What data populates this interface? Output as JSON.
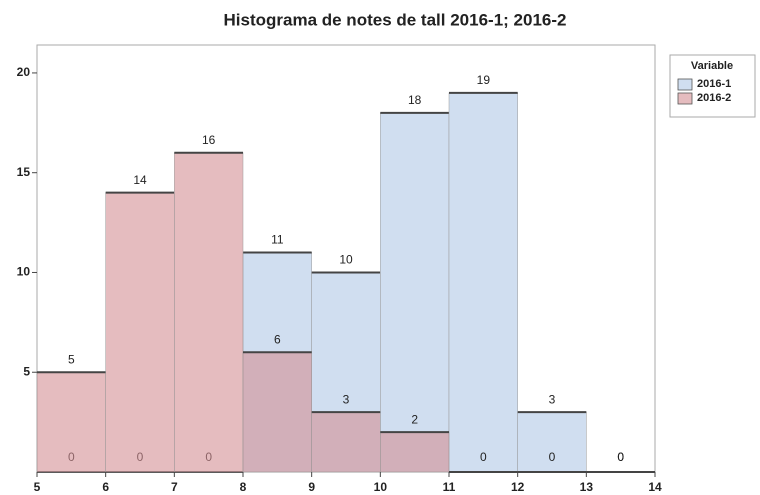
{
  "chart_data": {
    "type": "histogram",
    "title": "Histograma de notes de tall 2016-1; 2016-2",
    "bins": [
      5,
      6,
      7,
      8,
      9,
      10,
      11,
      12,
      13,
      14
    ],
    "series": [
      {
        "name": "2016-1",
        "color": "#d0def0",
        "values": [
          0,
          0,
          0,
          11,
          10,
          18,
          19,
          3,
          0
        ]
      },
      {
        "name": "2016-2",
        "color": "#d48f95",
        "values": [
          5,
          14,
          16,
          6,
          3,
          2,
          0,
          0,
          0
        ]
      }
    ],
    "legend_title": "Variable",
    "legend": "right",
    "xlim": [
      5,
      14
    ],
    "xticks": [
      5,
      6,
      7,
      8,
      9,
      10,
      11,
      12,
      13,
      14
    ],
    "ylim": [
      0,
      21.4
    ],
    "yticks": [
      5,
      10,
      15,
      20
    ]
  }
}
